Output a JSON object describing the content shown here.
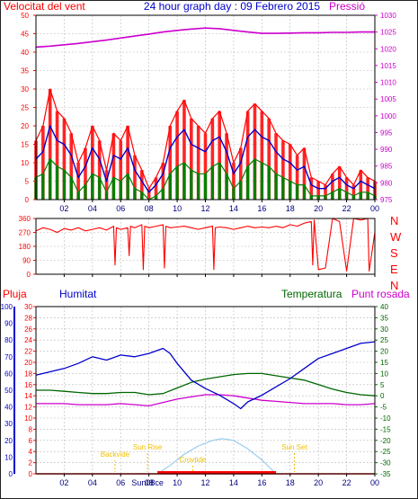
{
  "colors": {
    "border": "#222222",
    "frame": "#000000",
    "grid": "#b8b8b8",
    "wind": "#ff0000",
    "wind_avg": "#0000cc",
    "wind_low": "#008000",
    "pressure": "#cc00cc",
    "direction": "#ff0000",
    "rain": "#ff0000",
    "humidity": "#0000cc",
    "temperature": "#006600",
    "dewpoint": "#cc00cc",
    "sun_arc": "#99ccee",
    "sun_label": "#f0c000",
    "sun_marker": "#ff0000",
    "time_axis": "#000080"
  },
  "header": {
    "left_title": "Velocitat del vent",
    "center_title": "24 hour graph day : 09 Febrero 2015",
    "right_title": "Pressió"
  },
  "lower_labels": {
    "rain": "Pluja",
    "humidity": "Humitat",
    "temperature": "Temperatura",
    "dewpoint": "Punt rosada"
  },
  "sun_labels": {
    "twilight_start": "Backvide",
    "sunrise": "Sun Rise",
    "sun_noon": "Crovtide",
    "sunset": "Sun Set",
    "sun_marker": "Sun08ce"
  },
  "compass": [
    "N",
    "W",
    "S",
    "E",
    "N"
  ],
  "time_ticks": [
    "02",
    "04",
    "06",
    "08",
    "10",
    "12",
    "14",
    "16",
    "18",
    "20",
    "22",
    "00"
  ],
  "chart_data": [
    {
      "type": "line",
      "panel": "wind_pressure",
      "x_unit": "hour",
      "xlim": [
        0,
        24
      ],
      "left_axis": {
        "ticks": [
          0,
          5,
          10,
          15,
          20,
          25,
          30,
          35,
          40,
          45,
          50
        ],
        "ylim": [
          0,
          50
        ]
      },
      "right_axis": {
        "ticks": [
          975,
          980,
          985,
          990,
          995,
          1000,
          1005,
          1010,
          1015,
          1020,
          1025,
          1030
        ],
        "ylim": [
          975,
          1030
        ]
      },
      "series": [
        {
          "key": "wind_gust",
          "axis": "left",
          "x": [
            0,
            0.5,
            1,
            1.5,
            2,
            2.5,
            3,
            3.5,
            4,
            4.5,
            5,
            5.5,
            6,
            6.5,
            7,
            7.5,
            8,
            8.5,
            9,
            9.5,
            10,
            10.5,
            11,
            11.5,
            12,
            12.5,
            13,
            13.5,
            14,
            14.5,
            15,
            15.5,
            16,
            16.5,
            17,
            17.5,
            18,
            18.5,
            19,
            19.5,
            20,
            20.5,
            21,
            21.5,
            22,
            22.5,
            23,
            23.5,
            24
          ],
          "values": [
            16,
            20,
            30,
            24,
            22,
            18,
            10,
            14,
            20,
            16,
            8,
            18,
            16,
            20,
            12,
            8,
            3,
            6,
            10,
            20,
            24,
            27,
            22,
            20,
            18,
            22,
            24,
            18,
            10,
            14,
            24,
            26,
            24,
            22,
            18,
            16,
            15,
            12,
            14,
            6,
            5,
            4,
            7,
            9,
            6,
            4,
            8,
            6,
            5
          ]
        },
        {
          "key": "wind_avg",
          "axis": "left",
          "x": [
            0,
            0.5,
            1,
            1.5,
            2,
            2.5,
            3,
            3.5,
            4,
            4.5,
            5,
            5.5,
            6,
            6.5,
            7,
            7.5,
            8,
            8.5,
            9,
            9.5,
            10,
            10.5,
            11,
            11.5,
            12,
            12.5,
            13,
            13.5,
            14,
            14.5,
            15,
            15.5,
            16,
            16.5,
            17,
            17.5,
            18,
            18.5,
            19,
            19.5,
            20,
            20.5,
            21,
            21.5,
            22,
            22.5,
            23,
            23.5,
            24
          ],
          "values": [
            11,
            13,
            20,
            16,
            15,
            12,
            6,
            9,
            14,
            11,
            5,
            12,
            11,
            14,
            8,
            5,
            2,
            4,
            7,
            14,
            17,
            19,
            15,
            14,
            13,
            16,
            17,
            13,
            7,
            10,
            17,
            19,
            17,
            16,
            13,
            11,
            10,
            8,
            9,
            4,
            3,
            3,
            5,
            6,
            4,
            3,
            5,
            4,
            3
          ]
        },
        {
          "key": "wind_low",
          "axis": "left",
          "x": [
            0,
            0.5,
            1,
            1.5,
            2,
            2.5,
            3,
            3.5,
            4,
            4.5,
            5,
            5.5,
            6,
            6.5,
            7,
            7.5,
            8,
            8.5,
            9,
            9.5,
            10,
            10.5,
            11,
            11.5,
            12,
            12.5,
            13,
            13.5,
            14,
            14.5,
            15,
            15.5,
            16,
            16.5,
            17,
            17.5,
            18,
            18.5,
            19,
            19.5,
            20,
            20.5,
            21,
            21.5,
            22,
            22.5,
            23,
            23.5,
            24
          ],
          "values": [
            6,
            7,
            11,
            9,
            8,
            6,
            2,
            4,
            7,
            6,
            2,
            6,
            5,
            7,
            3,
            2,
            0,
            1,
            3,
            7,
            9,
            10,
            8,
            7,
            7,
            9,
            10,
            7,
            3,
            5,
            9,
            11,
            10,
            9,
            7,
            6,
            5,
            4,
            4,
            1,
            1,
            1,
            2,
            3,
            2,
            1,
            2,
            2,
            1
          ]
        },
        {
          "key": "pressure",
          "axis": "right",
          "x": [
            0,
            1,
            2,
            3,
            4,
            5,
            6,
            7,
            8,
            9,
            10,
            11,
            12,
            13,
            14,
            15,
            16,
            17,
            18,
            19,
            20,
            21,
            22,
            23,
            24
          ],
          "values": [
            1020.5,
            1020.8,
            1021.2,
            1021.6,
            1022.1,
            1022.6,
            1023.2,
            1023.8,
            1024.4,
            1025.0,
            1025.5,
            1025.9,
            1026.2,
            1026.0,
            1025.5,
            1025.0,
            1024.6,
            1024.6,
            1024.7,
            1024.8,
            1024.8,
            1024.9,
            1024.9,
            1025.0,
            1025.0
          ]
        }
      ]
    },
    {
      "type": "line",
      "panel": "wind_direction",
      "x_unit": "hour",
      "xlim": [
        0,
        24
      ],
      "left_axis": {
        "ticks": [
          0,
          90,
          180,
          270,
          360
        ],
        "ylim": [
          0,
          360
        ]
      },
      "series": [
        {
          "key": "direction",
          "axis": "left",
          "x": [
            0,
            0.5,
            1,
            1.5,
            2,
            2.5,
            3,
            3.5,
            4,
            4.5,
            5,
            5.5,
            5.6,
            5.7,
            6,
            6.5,
            6.6,
            6.7,
            7,
            7.5,
            7.6,
            7.7,
            8,
            8.5,
            9,
            9.1,
            9.2,
            9.5,
            10,
            10.5,
            11,
            11.5,
            12,
            12.5,
            12.6,
            12.7,
            13,
            13.5,
            14,
            14.5,
            15,
            15.5,
            16,
            16.5,
            17,
            17.5,
            18,
            18.5,
            19,
            19.5,
            19.6,
            19.7,
            20,
            20.5,
            21,
            21.5,
            22,
            22.5,
            23,
            23.5,
            23.6,
            24
          ],
          "values": [
            280,
            300,
            290,
            270,
            295,
            285,
            300,
            280,
            290,
            300,
            285,
            310,
            60,
            300,
            290,
            300,
            120,
            310,
            300,
            320,
            30,
            310,
            300,
            310,
            320,
            40,
            310,
            300,
            305,
            310,
            300,
            290,
            300,
            310,
            30,
            300,
            305,
            300,
            290,
            300,
            310,
            300,
            305,
            300,
            310,
            300,
            320,
            310,
            330,
            340,
            60,
            350,
            30,
            40,
            360,
            340,
            20,
            360,
            350,
            360,
            20,
            270
          ]
        }
      ]
    },
    {
      "type": "line",
      "panel": "humidity_temperature",
      "x_unit": "hour",
      "xlim": [
        0,
        24
      ],
      "axes": {
        "humidity": {
          "ticks": [
            0,
            10,
            20,
            30,
            40,
            50,
            60,
            70,
            80,
            90,
            100
          ],
          "ylim": [
            0,
            100
          ]
        },
        "rain": {
          "ticks": [
            0,
            2,
            4,
            6,
            8,
            10,
            12,
            14,
            16,
            18,
            20,
            22,
            24,
            26,
            28,
            30
          ],
          "ylim": [
            0,
            30
          ]
        },
        "temperature": {
          "ticks": [
            -35,
            -30,
            -25,
            -20,
            -15,
            -10,
            -5,
            0,
            5,
            10,
            15,
            20,
            25,
            30,
            35,
            40
          ],
          "ylim": [
            -35,
            40
          ]
        }
      },
      "series": [
        {
          "key": "humidity",
          "axis": "humidity",
          "x": [
            0,
            1,
            2,
            3,
            4,
            5,
            6,
            7,
            8,
            9,
            9.5,
            10,
            11,
            12,
            13,
            14,
            14.5,
            15,
            16,
            17,
            18,
            19,
            20,
            21,
            22,
            23,
            24
          ],
          "values": [
            59,
            61,
            63,
            66,
            70,
            68,
            71,
            70,
            72,
            75,
            72,
            66,
            56,
            51,
            47,
            42,
            39,
            43,
            47,
            52,
            57,
            63,
            69,
            72,
            75,
            78,
            79
          ]
        },
        {
          "key": "temperature",
          "axis": "temperature",
          "x": [
            0,
            1,
            2,
            3,
            4,
            5,
            6,
            7,
            8,
            9,
            10,
            11,
            12,
            13,
            14,
            15,
            16,
            17,
            18,
            19,
            20,
            21,
            22,
            23,
            24
          ],
          "values": [
            2.5,
            2.5,
            2.0,
            1.5,
            1.0,
            1.0,
            1.5,
            1.5,
            0.5,
            1.0,
            3.5,
            6.0,
            7.5,
            8.5,
            9.5,
            10.0,
            10.0,
            9.0,
            8.0,
            7.0,
            5.0,
            3.0,
            1.5,
            0.5,
            0.0
          ]
        },
        {
          "key": "dewpoint",
          "axis": "temperature",
          "x": [
            0,
            1,
            2,
            3,
            4,
            5,
            6,
            7,
            8,
            9,
            10,
            11,
            12,
            13,
            14,
            15,
            16,
            17,
            18,
            19,
            20,
            21,
            22,
            23,
            24
          ],
          "values": [
            -3.5,
            -3.5,
            -3.5,
            -4.0,
            -4.0,
            -4.0,
            -3.5,
            -4.0,
            -4.5,
            -3.0,
            -1.5,
            -0.5,
            0.5,
            0.5,
            0.0,
            -1.0,
            -2.0,
            -2.5,
            -3.0,
            -3.5,
            -3.5,
            -3.5,
            -4.0,
            -4.0,
            -3.5
          ]
        },
        {
          "key": "rain",
          "axis": "rain",
          "x": [
            0,
            24
          ],
          "values": [
            0,
            0
          ]
        },
        {
          "key": "sun_elevation",
          "axis": "rain",
          "x": [
            8.6,
            9.5,
            10.5,
            11.5,
            12.5,
            13.2,
            14,
            15,
            16,
            17
          ],
          "values": [
            0,
            1.5,
            3.5,
            5.0,
            6.0,
            6.3,
            6.0,
            4.5,
            2.5,
            0
          ]
        }
      ],
      "markers": {
        "twilight_start": 5.6,
        "sunrise": 7.9,
        "sun_noon": 11.1,
        "sunset": 18.3,
        "daylight_start": 8.6,
        "daylight_end": 17.0
      }
    }
  ]
}
